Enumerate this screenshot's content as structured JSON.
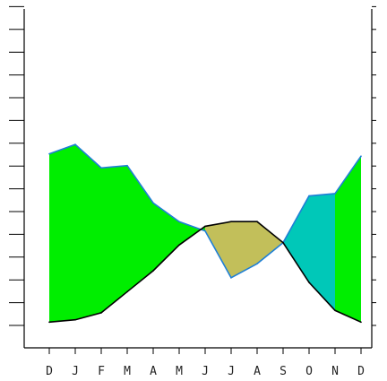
{
  "chart_data": {
    "type": "area",
    "title": "",
    "xlabel": "",
    "ylabel": "",
    "grid": false,
    "categories": [
      "D",
      "J",
      "F",
      "M",
      "A",
      "M",
      "J",
      "J",
      "A",
      "S",
      "O",
      "N",
      "D"
    ],
    "x": [
      0,
      1,
      2,
      3,
      4,
      5,
      6,
      7,
      8,
      9,
      10,
      11,
      12
    ],
    "ylim": [
      0,
      14.5
    ],
    "y_tick_count": 15,
    "series": [
      {
        "line_color": "#1e7fd6",
        "values": [
          8.3,
          8.7,
          7.7,
          7.8,
          6.2,
          5.4,
          5.0,
          3.0,
          3.6,
          4.5,
          6.5,
          6.6,
          8.2
        ]
      },
      {
        "line_color": "#000000",
        "values": [
          1.1,
          1.2,
          1.5,
          2.4,
          3.3,
          4.4,
          5.2,
          5.4,
          5.4,
          4.5,
          2.8,
          1.6,
          1.1
        ]
      }
    ],
    "fills": [
      {
        "from": 0,
        "to": 6,
        "color": "#00ee00"
      },
      {
        "from": 6,
        "to": 9,
        "color": "#c2bf5a"
      },
      {
        "from": 9,
        "to": 11,
        "color": "#00c8b8"
      },
      {
        "from": 11,
        "to": 12,
        "color": "#00ee00"
      }
    ]
  }
}
